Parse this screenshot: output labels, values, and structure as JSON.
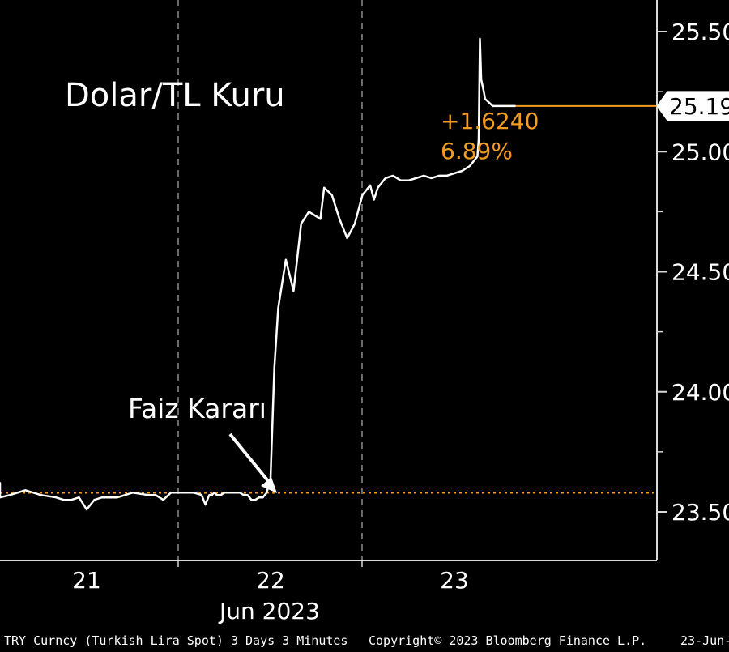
{
  "chart_data": {
    "type": "line",
    "title": "Dolar/TL Kuru",
    "xlabel": "Jun 2023",
    "x_ticks": [
      "21",
      "22",
      "23"
    ],
    "y_ticks": [
      "23.50",
      "24.00",
      "24.50",
      "25.00",
      "25.50"
    ],
    "ylim": [
      23.3,
      25.6
    ],
    "reference_value": 23.58,
    "last_value": "25.19",
    "change_abs": "+1.6240",
    "change_pct": "6.89%",
    "annotation": "Faiz Kararı",
    "grid": "vertical dashed lines at day boundaries",
    "colors": {
      "series": "#ffffff",
      "reference": "#f39c1f",
      "background": "#000000"
    },
    "series": [
      {
        "x": [
          "Jun 20 12:00",
          "Jun 20 16:00",
          "Jun 20 17:00",
          "Jun 20 20:00",
          "Jun 20 22:00",
          "Jun 21 00:00",
          "Jun 21 02:00",
          "Jun 21 04:00",
          "Jun 21 06:00",
          "Jun 21 08:00",
          "Jun 21 09:00",
          "Jun 21 10:00",
          "Jun 21 11:00",
          "Jun 21 12:00",
          "Jun 21 13:00",
          "Jun 21 14:00",
          "Jun 21 16:00",
          "Jun 21 18:00",
          "Jun 21 20:00",
          "Jun 21 21:00",
          "Jun 21 22:00",
          "Jun 21 23:00",
          "Jun 22 00:00",
          "Jun 22 02:00",
          "Jun 22 03:00",
          "Jun 22 03:30",
          "Jun 22 04:00",
          "Jun 22 04:20",
          "Jun 22 04:40",
          "Jun 22 05:00",
          "Jun 22 05:30",
          "Jun 22 06:00",
          "Jun 22 06:30",
          "Jun 22 07:00",
          "Jun 22 07:30",
          "Jun 22 08:00",
          "Jun 22 08:30",
          "Jun 22 09:00",
          "Jun 22 09:30",
          "Jun 22 10:00",
          "Jun 22 10:30",
          "Jun 22 11:00",
          "Jun 22 11:30",
          "Jun 22 12:00",
          "Jun 22 12:30",
          "Jun 22 13:00",
          "Jun 22 14:00",
          "Jun 22 15:00",
          "Jun 22 16:00",
          "Jun 22 17:00",
          "Jun 22 18:00",
          "Jun 22 18:30",
          "Jun 22 19:00",
          "Jun 22 20:00",
          "Jun 22 21:00",
          "Jun 22 22:00",
          "Jun 22 23:00",
          "Jun 23 00:00",
          "Jun 23 01:00",
          "Jun 23 01:30",
          "Jun 23 02:00",
          "Jun 23 03:00",
          "Jun 23 04:00",
          "Jun 23 05:00",
          "Jun 23 06:00",
          "Jun 23 07:00",
          "Jun 23 08:00",
          "Jun 23 09:00",
          "Jun 23 10:00",
          "Jun 23 11:00",
          "Jun 23 12:00",
          "Jun 23 13:00",
          "Jun 23 14:00",
          "Jun 23 15:00",
          "Jun 23 15:10",
          "Jun 23 15:20",
          "Jun 23 15:30",
          "Jun 23 15:50",
          "Jun 23 16:00",
          "Jun 23 17:00",
          "Jun 23 18:00",
          "Jun 23 19:00",
          "Jun 23 20:00"
        ],
        "values": [
          23.58,
          23.58,
          23.62,
          23.62,
          23.61,
          23.56,
          23.57,
          23.59,
          23.57,
          23.56,
          23.55,
          23.55,
          23.56,
          23.51,
          23.55,
          23.56,
          23.56,
          23.58,
          23.57,
          23.57,
          23.55,
          23.58,
          23.58,
          23.58,
          23.57,
          23.53,
          23.57,
          23.57,
          23.58,
          23.57,
          23.57,
          23.58,
          23.58,
          23.58,
          23.58,
          23.58,
          23.57,
          23.57,
          23.55,
          23.55,
          23.56,
          23.56,
          23.58,
          23.64,
          24.1,
          24.35,
          24.55,
          24.42,
          24.7,
          24.75,
          24.73,
          24.72,
          24.85,
          24.82,
          24.72,
          24.64,
          24.7,
          24.82,
          24.86,
          24.8,
          24.85,
          24.89,
          24.9,
          24.88,
          24.88,
          24.89,
          24.9,
          24.89,
          24.9,
          24.9,
          24.91,
          24.92,
          24.94,
          24.98,
          25.05,
          25.47,
          25.3,
          25.25,
          25.22,
          25.19,
          25.19,
          25.19,
          25.19
        ]
      }
    ]
  },
  "footer": {
    "left": "TRY Curncy (Turkish Lira Spot) 3 Days 3 Minutes",
    "center": "Copyright© 2023 Bloomberg Finance L.P.",
    "right": "23-Jun-"
  }
}
